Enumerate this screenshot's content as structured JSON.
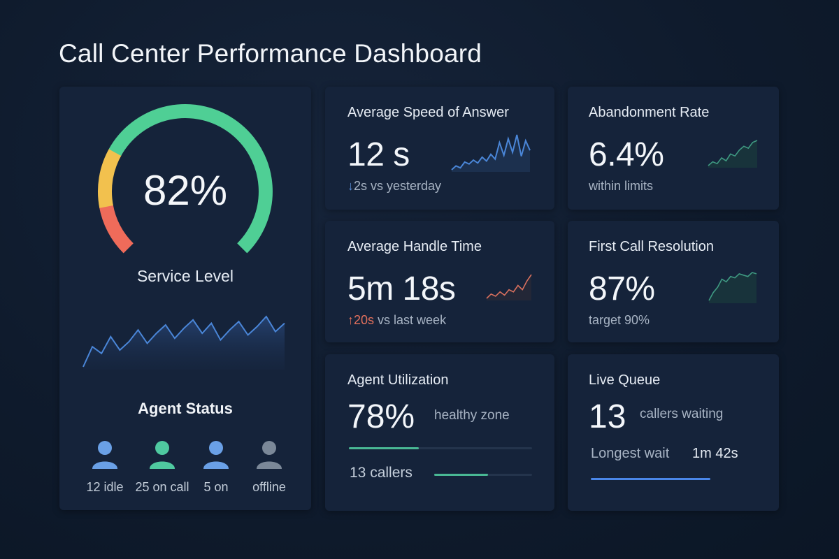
{
  "title": "Call Center Performance Dashboard",
  "service_level": {
    "value": "82%",
    "percent": 82,
    "label": "Service Level",
    "trend": [
      30,
      42,
      38,
      48,
      40,
      45,
      52,
      44,
      50,
      55,
      47,
      53,
      58,
      50,
      56,
      46,
      52,
      57,
      49,
      54,
      60,
      51,
      56
    ]
  },
  "agent_status": {
    "title": "Agent Status",
    "items": [
      {
        "label": "12 idle",
        "color": "#6aa0e6"
      },
      {
        "label": "25 on call",
        "color": "#4fc9a0"
      },
      {
        "label": "5 on",
        "color": "#6aa0e6"
      },
      {
        "label": "offline",
        "color": "#7b8898"
      }
    ]
  },
  "asa": {
    "title": "Average Speed of Answer",
    "value": "12 s",
    "arrow": "↓",
    "delta": "2s vs yesterday",
    "trend": [
      20,
      24,
      22,
      28,
      26,
      30,
      27,
      33,
      29,
      36,
      31,
      48,
      35,
      52,
      38,
      56,
      34,
      50,
      40
    ]
  },
  "abandonment": {
    "title": "Abandonment Rate",
    "value": "6.4%",
    "note": "within limits",
    "trend": [
      10,
      14,
      12,
      18,
      15,
      22,
      20,
      26,
      30,
      28,
      34,
      36
    ]
  },
  "aht": {
    "title": "Average Handle Time",
    "value": "5m 18s",
    "arrow": "↑",
    "delta_highlight": "20s",
    "delta": " vs last week",
    "trend": [
      14,
      18,
      16,
      20,
      17,
      22,
      20,
      26,
      22,
      30,
      36
    ]
  },
  "fcr": {
    "title": "First Call Resolution",
    "value": "87%",
    "note": "target 90%",
    "trend": [
      12,
      18,
      22,
      28,
      26,
      30,
      29,
      32,
      31,
      30,
      33,
      32
    ]
  },
  "utilization": {
    "title": "Agent Utilization",
    "value": "78%",
    "note": "healthy zone",
    "bar_fraction": 0.38,
    "callers": "13 callers",
    "callers_fraction": 0.55
  },
  "queue": {
    "title": "Live Queue",
    "value": "13",
    "note": "callers waiting",
    "wait_label": "Longest wait",
    "wait_value": "1m 42s",
    "bar_fraction": 1.0
  },
  "colors": {
    "gauge_green": "#4fcf95",
    "gauge_yellow": "#f2c14e",
    "gauge_red": "#ef6b5a",
    "track": "#1f2f47",
    "blue_line": "#4a86d8",
    "red_line": "#d8705e",
    "teal_line": "#3f9a82",
    "util_bar": "#49b894",
    "queue_bar": "#4a86e8"
  }
}
